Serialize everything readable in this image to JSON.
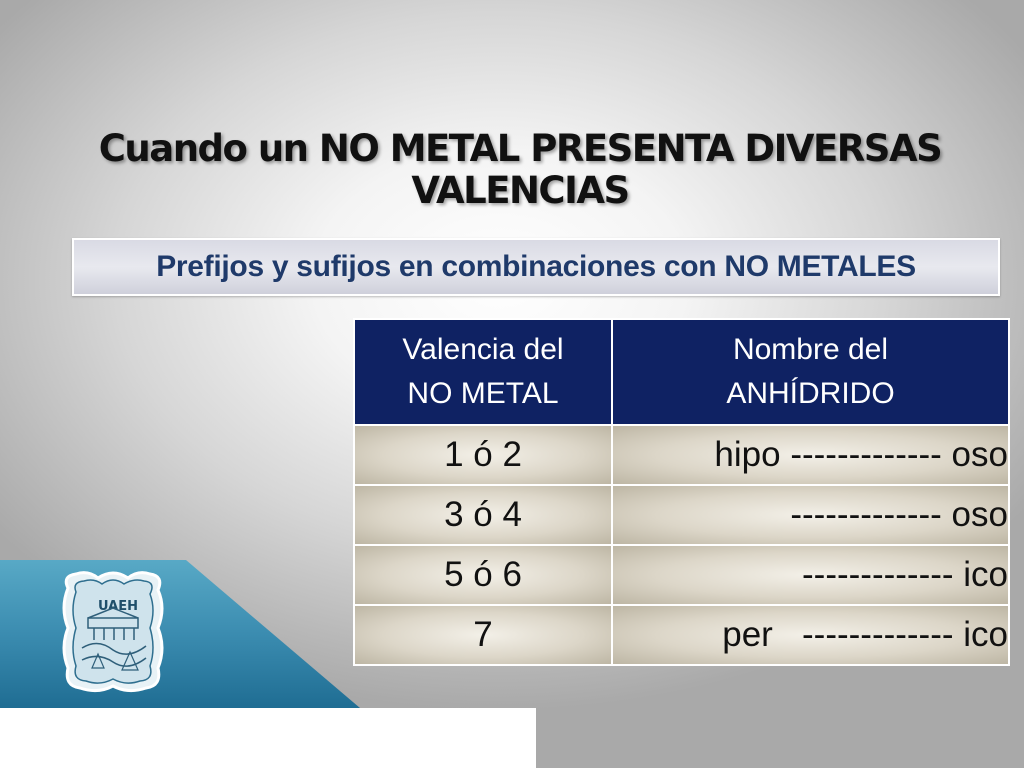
{
  "slide": {
    "title_line1": "Cuando un NO METAL PRESENTA DIVERSAS",
    "title_line2": "VALENCIAS",
    "subtitle": "Prefijos y sufijos  en combinaciones con NO METALES"
  },
  "table": {
    "headers": [
      {
        "line1": "Valencia del",
        "line2": "NO METAL"
      },
      {
        "line1": "Nombre del",
        "line2": "ANHÍDRIDO"
      }
    ],
    "rows": [
      {
        "valencia": "1  ó 2",
        "nombre": "hipo ------------- oso"
      },
      {
        "valencia": "3 ó 4",
        "nombre": "------------- oso"
      },
      {
        "valencia": "5 ó 6",
        "nombre": "------------- ico"
      },
      {
        "valencia": "7",
        "nombre": "per   ------------- ico"
      }
    ]
  },
  "logo": {
    "icon": "uaeh-shield-logo-icon",
    "text": "UAEH"
  },
  "colors": {
    "header_bg": "#0f2263",
    "subtitle_text": "#1f3a6a",
    "teal_band": "#3b8cb0"
  }
}
